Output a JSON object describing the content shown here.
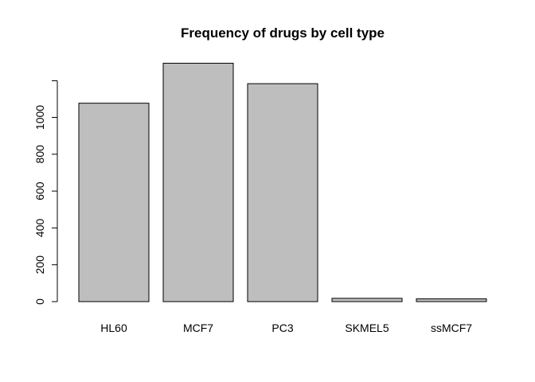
{
  "chart_data": {
    "type": "bar",
    "title": "Frequency of drugs by cell type",
    "xlabel": "",
    "ylabel": "",
    "categories": [
      "HL60",
      "MCF7",
      "PC3",
      "SKMEL5",
      "ssMCF7"
    ],
    "values": [
      1077,
      1294,
      1183,
      18,
      15
    ],
    "yticks": [
      0,
      200,
      400,
      600,
      800,
      1000
    ],
    "ylim": [
      0,
      1294
    ],
    "grid": false,
    "bar_fill": "#bebebe",
    "bar_stroke": "#000000"
  }
}
